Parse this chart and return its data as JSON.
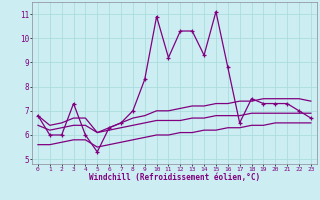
{
  "xlabel": "Windchill (Refroidissement éolien,°C)",
  "background_color": "#cceef2",
  "line_color": "#800080",
  "x_values": [
    0,
    1,
    2,
    3,
    4,
    5,
    6,
    7,
    8,
    9,
    10,
    11,
    12,
    13,
    14,
    15,
    16,
    17,
    18,
    19,
    20,
    21,
    22,
    23
  ],
  "main_y": [
    6.8,
    6.0,
    6.0,
    7.3,
    6.0,
    5.3,
    6.3,
    6.5,
    7.0,
    8.3,
    10.9,
    9.2,
    10.3,
    10.3,
    9.3,
    11.1,
    8.8,
    6.5,
    7.5,
    7.3,
    7.3,
    7.3,
    7.0,
    6.7
  ],
  "upper_y": [
    6.8,
    6.4,
    6.5,
    6.7,
    6.7,
    6.1,
    6.3,
    6.5,
    6.7,
    6.8,
    7.0,
    7.0,
    7.1,
    7.2,
    7.2,
    7.3,
    7.3,
    7.4,
    7.4,
    7.5,
    7.5,
    7.5,
    7.5,
    7.4
  ],
  "mid_y": [
    6.4,
    6.2,
    6.3,
    6.4,
    6.4,
    6.1,
    6.2,
    6.3,
    6.4,
    6.5,
    6.6,
    6.6,
    6.6,
    6.7,
    6.7,
    6.8,
    6.8,
    6.8,
    6.9,
    6.9,
    6.9,
    6.9,
    6.9,
    6.9
  ],
  "lower_y": [
    5.6,
    5.6,
    5.7,
    5.8,
    5.8,
    5.5,
    5.6,
    5.7,
    5.8,
    5.9,
    6.0,
    6.0,
    6.1,
    6.1,
    6.2,
    6.2,
    6.3,
    6.3,
    6.4,
    6.4,
    6.5,
    6.5,
    6.5,
    6.5
  ],
  "ylim": [
    4.8,
    11.5
  ],
  "xlim": [
    -0.5,
    23.5
  ],
  "yticks": [
    5,
    6,
    7,
    8,
    9,
    10,
    11
  ],
  "grid_color": "#aadddd",
  "spine_color": "#888899"
}
